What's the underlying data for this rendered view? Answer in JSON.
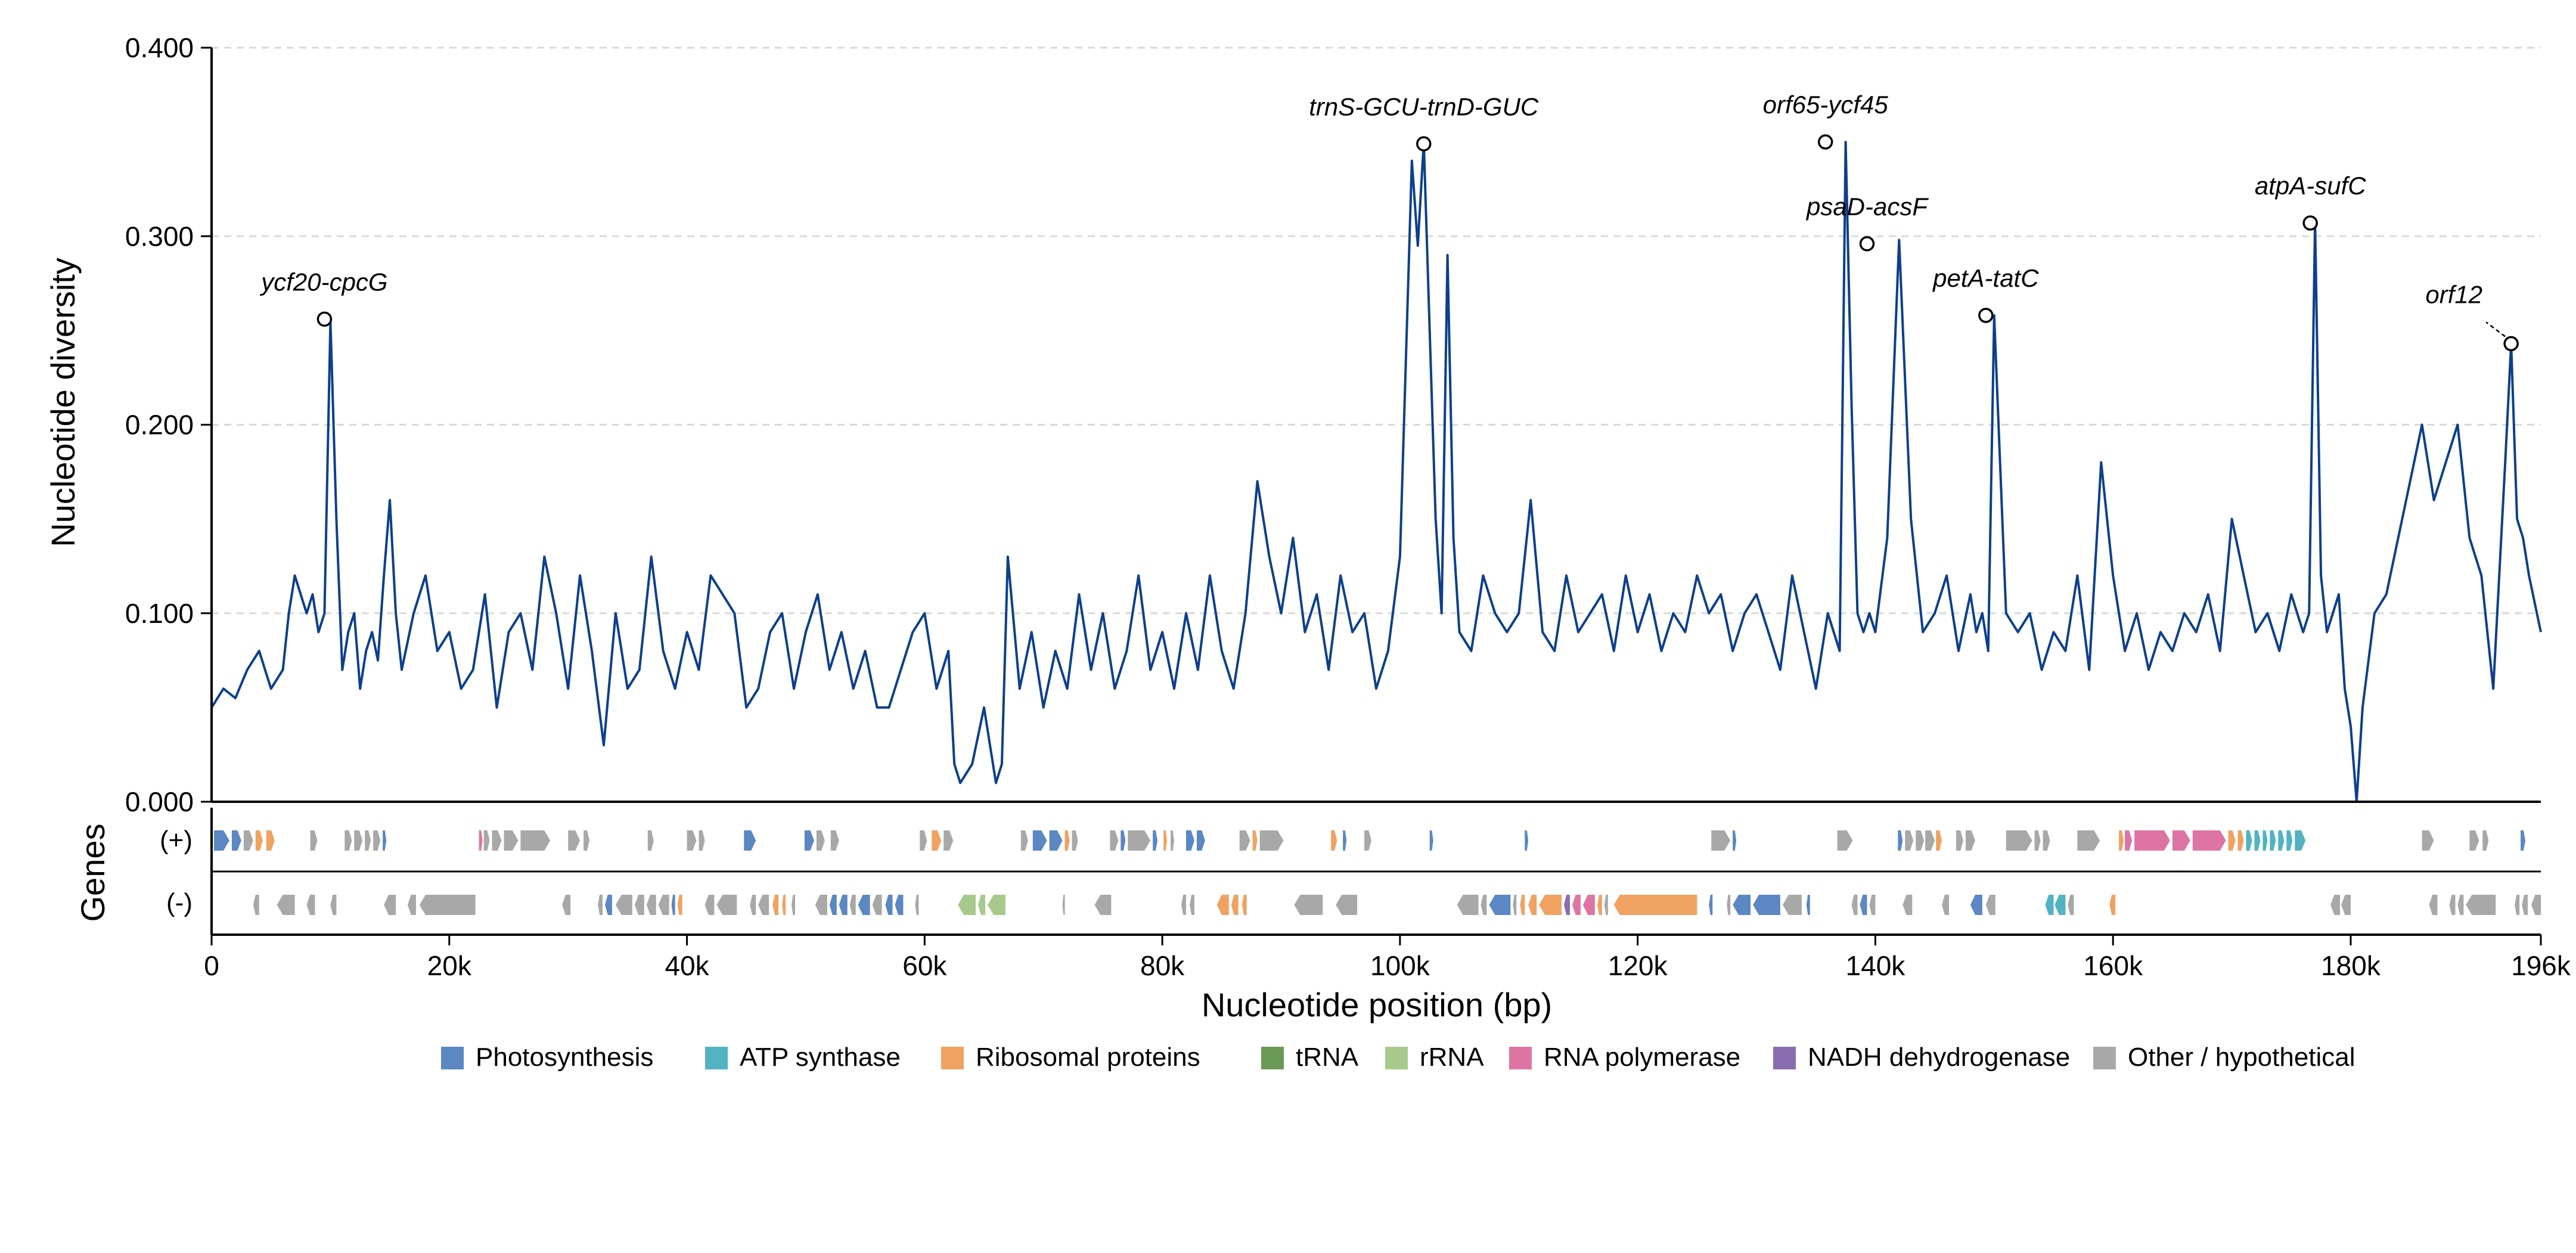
{
  "chart_data": {
    "type": "line",
    "xlabel": "Nucleotide position (bp)",
    "ylabel": "Nucleotide diversity",
    "genes_label": "Genes",
    "strand_plus": "(+)",
    "strand_minus": "(-)",
    "xlim": [
      0,
      196000
    ],
    "ylim": [
      0,
      0.4
    ],
    "x_ticks": [
      {
        "value": 0,
        "label": "0"
      },
      {
        "value": 20000,
        "label": "20k"
      },
      {
        "value": 40000,
        "label": "40k"
      },
      {
        "value": 60000,
        "label": "60k"
      },
      {
        "value": 80000,
        "label": "80k"
      },
      {
        "value": 100000,
        "label": "100k"
      },
      {
        "value": 120000,
        "label": "120k"
      },
      {
        "value": 140000,
        "label": "140k"
      },
      {
        "value": 160000,
        "label": "160k"
      },
      {
        "value": 180000,
        "label": "180k"
      },
      {
        "value": 196000,
        "label": "196k"
      }
    ],
    "y_ticks": [
      {
        "value": 0,
        "label": "0.000"
      },
      {
        "value": 0.1,
        "label": "0.100"
      },
      {
        "value": 0.2,
        "label": "0.200"
      },
      {
        "value": 0.3,
        "label": "0.300"
      },
      {
        "value": 0.4,
        "label": "0.400"
      }
    ],
    "grid": "y-dashed",
    "line_color": "#0d3f8c",
    "series": [
      {
        "x": [
          0,
          1000,
          2000,
          3000,
          4000,
          5000,
          6000,
          6500,
          7000,
          7500,
          8000,
          8500,
          9000,
          9500,
          10000,
          10500,
          11000,
          11500,
          12000,
          12500,
          13000,
          13500,
          14000,
          14500,
          15000,
          15500,
          16000,
          17000,
          18000,
          19000,
          20000,
          21000,
          22000,
          23000,
          24000,
          25000,
          26000,
          27000,
          28000,
          29000,
          30000,
          31000,
          32000,
          33000,
          34000,
          35000,
          36000,
          37000,
          38000,
          39000,
          40000,
          41000,
          42000,
          43000,
          44000,
          45000,
          46000,
          47000,
          48000,
          49000,
          50000,
          51000,
          52000,
          53000,
          54000,
          55000,
          56000,
          57000,
          58000,
          59000,
          60000,
          61000,
          62000,
          62500,
          63000,
          64000,
          65000,
          66000,
          66500,
          67000,
          68000,
          69000,
          70000,
          71000,
          72000,
          73000,
          74000,
          75000,
          76000,
          77000,
          78000,
          79000,
          80000,
          81000,
          82000,
          83000,
          84000,
          85000,
          86000,
          87000,
          88000,
          89000,
          90000,
          91000,
          92000,
          93000,
          94000,
          95000,
          96000,
          97000,
          98000,
          99000,
          100000,
          101000,
          101500,
          102000,
          102500,
          103000,
          103500,
          104000,
          104500,
          105000,
          106000,
          107000,
          108000,
          109000,
          110000,
          111000,
          112000,
          113000,
          114000,
          115000,
          116000,
          117000,
          118000,
          119000,
          120000,
          121000,
          122000,
          123000,
          124000,
          125000,
          126000,
          127000,
          128000,
          129000,
          130000,
          131000,
          132000,
          133000,
          134000,
          135000,
          135500,
          136000,
          136500,
          137000,
          137500,
          138000,
          138500,
          139000,
          139500,
          140000,
          141000,
          142000,
          143000,
          144000,
          145000,
          146000,
          147000,
          148000,
          148500,
          149000,
          149500,
          150000,
          151000,
          152000,
          153000,
          154000,
          155000,
          156000,
          157000,
          158000,
          159000,
          160000,
          161000,
          162000,
          163000,
          164000,
          165000,
          166000,
          167000,
          168000,
          169000,
          170000,
          171000,
          172000,
          173000,
          174000,
          175000,
          176000,
          176500,
          177000,
          177500,
          178000,
          179000,
          179500,
          180000,
          180500,
          181000,
          182000,
          183000,
          184000,
          185000,
          186000,
          187000,
          188000,
          189000,
          190000,
          191000,
          192000,
          193000,
          193500,
          194000,
          194500,
          195000,
          196000
        ],
        "y": [
          0.05,
          0.06,
          0.055,
          0.07,
          0.08,
          0.06,
          0.07,
          0.1,
          0.12,
          0.11,
          0.1,
          0.11,
          0.09,
          0.1,
          0.255,
          0.15,
          0.07,
          0.09,
          0.1,
          0.06,
          0.08,
          0.09,
          0.075,
          0.12,
          0.16,
          0.1,
          0.07,
          0.1,
          0.12,
          0.08,
          0.09,
          0.06,
          0.07,
          0.11,
          0.05,
          0.09,
          0.1,
          0.07,
          0.13,
          0.1,
          0.06,
          0.12,
          0.08,
          0.03,
          0.1,
          0.06,
          0.07,
          0.13,
          0.08,
          0.06,
          0.09,
          0.07,
          0.12,
          0.11,
          0.1,
          0.05,
          0.06,
          0.09,
          0.1,
          0.06,
          0.09,
          0.11,
          0.07,
          0.09,
          0.06,
          0.08,
          0.05,
          0.05,
          0.07,
          0.09,
          0.1,
          0.06,
          0.08,
          0.02,
          0.01,
          0.02,
          0.05,
          0.01,
          0.02,
          0.13,
          0.06,
          0.09,
          0.05,
          0.08,
          0.06,
          0.11,
          0.07,
          0.1,
          0.06,
          0.08,
          0.12,
          0.07,
          0.09,
          0.06,
          0.1,
          0.07,
          0.12,
          0.08,
          0.06,
          0.1,
          0.17,
          0.13,
          0.1,
          0.14,
          0.09,
          0.11,
          0.07,
          0.12,
          0.09,
          0.1,
          0.06,
          0.08,
          0.13,
          0.34,
          0.295,
          0.35,
          0.25,
          0.15,
          0.1,
          0.29,
          0.14,
          0.09,
          0.08,
          0.12,
          0.1,
          0.09,
          0.1,
          0.16,
          0.09,
          0.08,
          0.12,
          0.09,
          0.1,
          0.11,
          0.08,
          0.12,
          0.09,
          0.11,
          0.08,
          0.1,
          0.09,
          0.12,
          0.1,
          0.11,
          0.08,
          0.1,
          0.11,
          0.09,
          0.07,
          0.12,
          0.09,
          0.06,
          0.08,
          0.1,
          0.09,
          0.08,
          0.35,
          0.21,
          0.1,
          0.09,
          0.1,
          0.09,
          0.14,
          0.298,
          0.15,
          0.09,
          0.1,
          0.12,
          0.08,
          0.11,
          0.09,
          0.1,
          0.08,
          0.258,
          0.1,
          0.09,
          0.1,
          0.07,
          0.09,
          0.08,
          0.12,
          0.07,
          0.18,
          0.12,
          0.08,
          0.1,
          0.07,
          0.09,
          0.08,
          0.1,
          0.09,
          0.11,
          0.08,
          0.15,
          0.12,
          0.09,
          0.1,
          0.08,
          0.11,
          0.09,
          0.1,
          0.308,
          0.12,
          0.09,
          0.11,
          0.06,
          0.04,
          0.0,
          0.05,
          0.1,
          0.11,
          0.14,
          0.17,
          0.2,
          0.16,
          0.18,
          0.2,
          0.14,
          0.12,
          0.06,
          0.18,
          0.243,
          0.15,
          0.14,
          0.12,
          0.09
        ]
      }
    ],
    "peaks": [
      {
        "x": 9500,
        "y": 0.256,
        "label": "ycf20-cpcG"
      },
      {
        "x": 102000,
        "y": 0.349,
        "label": "trnS-GCU-trnD-GUC"
      },
      {
        "x": 135800,
        "y": 0.35,
        "label": "orf65-ycf45"
      },
      {
        "x": 139300,
        "y": 0.296,
        "label": "psaD-acsF"
      },
      {
        "x": 149300,
        "y": 0.258,
        "label": "petA-tatC"
      },
      {
        "x": 176600,
        "y": 0.307,
        "label": "atpA-sufC"
      },
      {
        "x": 193500,
        "y": 0.243,
        "label": "orf12",
        "leader": true
      }
    ],
    "legend_placement": "bottom-center",
    "categories": [
      {
        "name": "Photosynthesis",
        "color": "#5b87c3"
      },
      {
        "name": "ATP synthase",
        "color": "#52b3c2"
      },
      {
        "name": "Ribosomal proteins",
        "color": "#f0a262"
      },
      {
        "name": "tRNA",
        "color": "#6a9a55"
      },
      {
        "name": "rRNA",
        "color": "#a8c98c"
      },
      {
        "name": "RNA polymerase",
        "color": "#de74a4"
      },
      {
        "name": "NADH dehydrogenase",
        "color": "#8a6db1"
      },
      {
        "name": "Other / hypothetical",
        "color": "#a8a8a8"
      }
    ],
    "genes_plus": [
      [
        200,
        1500,
        0
      ],
      [
        1700,
        2500,
        0
      ],
      [
        2700,
        3500,
        7
      ],
      [
        3700,
        4300,
        2
      ],
      [
        4600,
        5300,
        2
      ],
      [
        8300,
        8900,
        7
      ],
      [
        11200,
        11800,
        7
      ],
      [
        12000,
        12700,
        7
      ],
      [
        12900,
        13400,
        7
      ],
      [
        13600,
        14200,
        7
      ],
      [
        14400,
        14700,
        0
      ],
      [
        22500,
        22800,
        5
      ],
      [
        22900,
        23400,
        7
      ],
      [
        23600,
        24400,
        7
      ],
      [
        24600,
        25800,
        7
      ],
      [
        26000,
        28500,
        7
      ],
      [
        30000,
        31000,
        7
      ],
      [
        31300,
        31800,
        7
      ],
      [
        36700,
        37200,
        7
      ],
      [
        40000,
        40800,
        7
      ],
      [
        41000,
        41500,
        7
      ],
      [
        44800,
        45800,
        0
      ],
      [
        49900,
        50700,
        0
      ],
      [
        50900,
        51600,
        7
      ],
      [
        52100,
        52800,
        7
      ],
      [
        59600,
        60200,
        7
      ],
      [
        60600,
        61400,
        2
      ],
      [
        61600,
        62400,
        7
      ],
      [
        68100,
        68700,
        7
      ],
      [
        69100,
        70300,
        0
      ],
      [
        70500,
        71600,
        0
      ],
      [
        71800,
        72200,
        2
      ],
      [
        72400,
        72900,
        7
      ],
      [
        75600,
        76300,
        7
      ],
      [
        76500,
        76900,
        0
      ],
      [
        77100,
        79000,
        7
      ],
      [
        79200,
        79600,
        0
      ],
      [
        80100,
        80400,
        2
      ],
      [
        80700,
        81000,
        7
      ],
      [
        82000,
        82700,
        0
      ],
      [
        82900,
        83600,
        0
      ],
      [
        86500,
        87400,
        7
      ],
      [
        87600,
        88000,
        2
      ],
      [
        88200,
        90200,
        7
      ],
      [
        94200,
        94700,
        2
      ],
      [
        95200,
        95500,
        0
      ],
      [
        97000,
        97600,
        7
      ],
      [
        102500,
        102800,
        0
      ],
      [
        110500,
        110800,
        0
      ],
      [
        126200,
        127800,
        7
      ],
      [
        128000,
        128300,
        0
      ],
      [
        136800,
        138100,
        7
      ],
      [
        141900,
        142300,
        0
      ],
      [
        142500,
        143200,
        7
      ],
      [
        143400,
        144100,
        7
      ],
      [
        144200,
        145000,
        7
      ],
      [
        145100,
        145600,
        2
      ],
      [
        146800,
        147400,
        7
      ],
      [
        147600,
        148400,
        7
      ],
      [
        151000,
        153200,
        7
      ],
      [
        153400,
        153900,
        7
      ],
      [
        154100,
        154700,
        7
      ],
      [
        157000,
        158900,
        7
      ],
      [
        160500,
        160900,
        2
      ],
      [
        161000,
        161600,
        5
      ],
      [
        161800,
        164800,
        5
      ],
      [
        165000,
        166500,
        5
      ],
      [
        166700,
        169500,
        5
      ],
      [
        169700,
        170300,
        2
      ],
      [
        170500,
        171000,
        2
      ],
      [
        171200,
        171700,
        1
      ],
      [
        171900,
        172400,
        1
      ],
      [
        172600,
        173000,
        1
      ],
      [
        173200,
        173700,
        1
      ],
      [
        173900,
        174400,
        1
      ],
      [
        174600,
        175100,
        1
      ],
      [
        175300,
        176200,
        1
      ],
      [
        186000,
        187000,
        7
      ],
      [
        190000,
        190800,
        7
      ],
      [
        191100,
        191600,
        7
      ],
      [
        194300,
        194700,
        0
      ]
    ],
    "genes_minus": [
      [
        3500,
        4000,
        7
      ],
      [
        5500,
        7000,
        7
      ],
      [
        8000,
        8700,
        7
      ],
      [
        10000,
        10500,
        7
      ],
      [
        14500,
        15500,
        7
      ],
      [
        16500,
        17200,
        7
      ],
      [
        17500,
        22200,
        7
      ],
      [
        29500,
        30200,
        7
      ],
      [
        32500,
        32900,
        7
      ],
      [
        33100,
        33700,
        0
      ],
      [
        34000,
        35400,
        7
      ],
      [
        35600,
        36400,
        7
      ],
      [
        36600,
        37400,
        7
      ],
      [
        37600,
        38500,
        7
      ],
      [
        38700,
        39000,
        0
      ],
      [
        39200,
        39600,
        2
      ],
      [
        41500,
        42300,
        7
      ],
      [
        42500,
        44200,
        7
      ],
      [
        45300,
        45800,
        7
      ],
      [
        46000,
        46900,
        7
      ],
      [
        47200,
        47700,
        2
      ],
      [
        48000,
        48300,
        2
      ],
      [
        48800,
        49100,
        7
      ],
      [
        50800,
        51800,
        7
      ],
      [
        52000,
        52600,
        0
      ],
      [
        52800,
        53500,
        0
      ],
      [
        53700,
        54200,
        7
      ],
      [
        54400,
        55400,
        0
      ],
      [
        55600,
        56400,
        7
      ],
      [
        56700,
        57300,
        0
      ],
      [
        57500,
        58200,
        0
      ],
      [
        59200,
        59500,
        7
      ],
      [
        62800,
        64300,
        4
      ],
      [
        64500,
        65100,
        4
      ],
      [
        65300,
        66800,
        4
      ],
      [
        71600,
        71800,
        7
      ],
      [
        74300,
        75700,
        7
      ],
      [
        81600,
        82000,
        7
      ],
      [
        82300,
        82700,
        7
      ],
      [
        84600,
        85600,
        2
      ],
      [
        85800,
        86400,
        2
      ],
      [
        86700,
        87100,
        2
      ],
      [
        91100,
        93500,
        7
      ],
      [
        94600,
        96400,
        7
      ],
      [
        104800,
        106600,
        7
      ],
      [
        106800,
        107300,
        7
      ],
      [
        107500,
        109300,
        0
      ],
      [
        109500,
        109800,
        7
      ],
      [
        110100,
        110500,
        2
      ],
      [
        110800,
        111500,
        2
      ],
      [
        111700,
        113600,
        2
      ],
      [
        113800,
        114300,
        6
      ],
      [
        114500,
        115200,
        5
      ],
      [
        115400,
        116400,
        5
      ],
      [
        116600,
        117000,
        2
      ],
      [
        117200,
        117500,
        7
      ],
      [
        118000,
        125000,
        2
      ],
      [
        126000,
        126300,
        0
      ],
      [
        127500,
        127800,
        7
      ],
      [
        128000,
        129500,
        0
      ],
      [
        129700,
        132000,
        0
      ],
      [
        132200,
        133800,
        7
      ],
      [
        134200,
        134500,
        0
      ],
      [
        138000,
        138500,
        7
      ],
      [
        138700,
        139300,
        0
      ],
      [
        139500,
        140000,
        7
      ],
      [
        142300,
        143100,
        7
      ],
      [
        145600,
        146200,
        7
      ],
      [
        148000,
        149000,
        0
      ],
      [
        149300,
        150100,
        7
      ],
      [
        154300,
        155000,
        1
      ],
      [
        155100,
        156000,
        1
      ],
      [
        156200,
        156700,
        7
      ],
      [
        159700,
        160200,
        2
      ],
      [
        178300,
        179100,
        7
      ],
      [
        179200,
        180000,
        7
      ],
      [
        186600,
        187300,
        7
      ],
      [
        188300,
        188800,
        7
      ],
      [
        189000,
        189500,
        7
      ],
      [
        189700,
        192200,
        7
      ],
      [
        193800,
        194200,
        7
      ],
      [
        194400,
        194900,
        7
      ],
      [
        195200,
        196000,
        7
      ]
    ]
  }
}
